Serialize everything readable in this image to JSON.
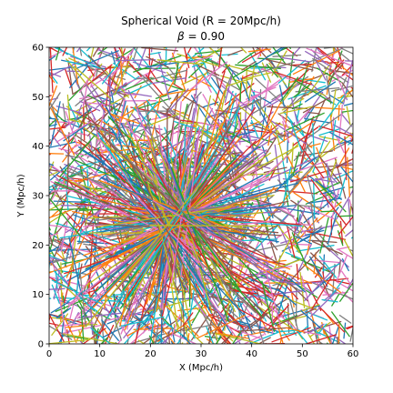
{
  "chart_data": {
    "type": "line",
    "title": "Spherical Void (R = 20Mpc/h)",
    "subtitle_symbol": "β",
    "subtitle_rest": " =  0.90",
    "xlabel": "X (Mpc/h)",
    "ylabel": "Y (Mpc/h)",
    "xlim": [
      0,
      60
    ],
    "ylim": [
      0,
      60
    ],
    "xticks": [
      "0",
      "10",
      "20",
      "30",
      "40",
      "50",
      "60"
    ],
    "yticks": [
      "0",
      "10",
      "20",
      "30",
      "40",
      "50",
      "60"
    ],
    "grid": false,
    "legend": "none",
    "void_center": [
      25,
      25
    ],
    "void_radius": 20,
    "beta": 0.9,
    "palette": [
      "#1f77b4",
      "#ff7f0e",
      "#2ca02c",
      "#d62728",
      "#9467bd",
      "#8c564b",
      "#e377c2",
      "#7f7f7f",
      "#bcbd22",
      "#17becf"
    ],
    "note": "Dense tangle of many short multi-colored segments (particle trajectories/Delaunay edges); inside the void region long streaks radiate through the center."
  }
}
